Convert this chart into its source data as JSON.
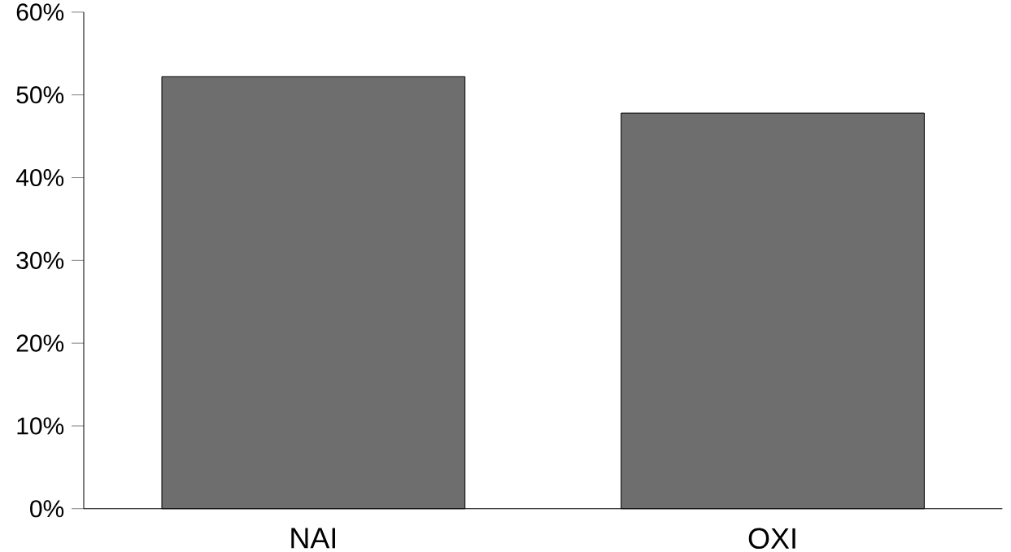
{
  "chart_data": {
    "type": "bar",
    "categories": [
      "NAI",
      "OXI"
    ],
    "values": [
      52.2,
      47.8
    ],
    "color": "#6e6e6e",
    "ylim": [
      0,
      60
    ],
    "yticks": [
      {
        "value": 0,
        "label": "0%"
      },
      {
        "value": 10,
        "label": "10%"
      },
      {
        "value": 20,
        "label": "20%"
      },
      {
        "value": 30,
        "label": "30%"
      },
      {
        "value": 40,
        "label": "40%"
      },
      {
        "value": 50,
        "label": "50%"
      },
      {
        "value": 60,
        "label": "60%"
      }
    ],
    "grid": false
  }
}
